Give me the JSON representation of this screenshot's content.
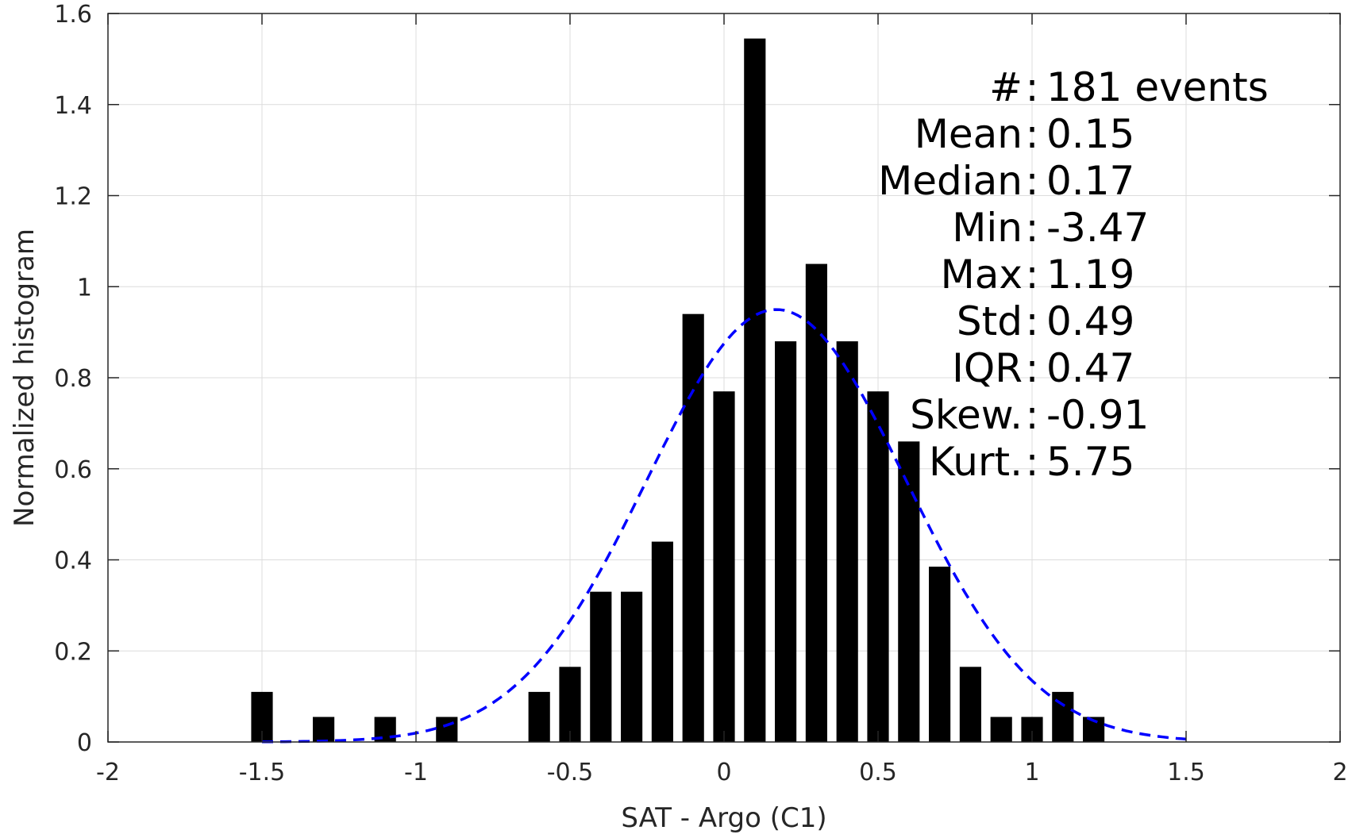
{
  "chart_data": {
    "type": "bar",
    "xlabel": "SAT - Argo (C1)",
    "ylabel": "Normalized histogram",
    "xlim": [
      -2,
      2
    ],
    "ylim": [
      0,
      1.6
    ],
    "xticks": [
      -2,
      -1.5,
      -1,
      -0.5,
      0,
      0.5,
      1,
      1.5,
      2
    ],
    "xtick_labels": [
      "-2",
      "-1.5",
      "-1",
      "-0.5",
      "0",
      "0.5",
      "1",
      "1.5",
      "2"
    ],
    "yticks": [
      0,
      0.2,
      0.4,
      0.6,
      0.8,
      1,
      1.2,
      1.4,
      1.6
    ],
    "ytick_labels": [
      "0",
      "0.2",
      "0.4",
      "0.6",
      "0.8",
      "1",
      "1.2",
      "1.4",
      "1.6"
    ],
    "grid": true,
    "bar_width": 0.07,
    "bar_color": "#000000",
    "bars": [
      {
        "x": -1.5,
        "y": 0.11
      },
      {
        "x": -1.3,
        "y": 0.055
      },
      {
        "x": -1.1,
        "y": 0.055
      },
      {
        "x": -0.9,
        "y": 0.055
      },
      {
        "x": -0.6,
        "y": 0.11
      },
      {
        "x": -0.5,
        "y": 0.165
      },
      {
        "x": -0.4,
        "y": 0.33
      },
      {
        "x": -0.3,
        "y": 0.33
      },
      {
        "x": -0.2,
        "y": 0.44
      },
      {
        "x": -0.1,
        "y": 0.94
      },
      {
        "x": 0.0,
        "y": 0.77
      },
      {
        "x": 0.1,
        "y": 1.545
      },
      {
        "x": 0.2,
        "y": 0.88
      },
      {
        "x": 0.3,
        "y": 1.05
      },
      {
        "x": 0.4,
        "y": 0.88
      },
      {
        "x": 0.5,
        "y": 0.77
      },
      {
        "x": 0.6,
        "y": 0.66
      },
      {
        "x": 0.7,
        "y": 0.385
      },
      {
        "x": 0.8,
        "y": 0.165
      },
      {
        "x": 0.9,
        "y": 0.055
      },
      {
        "x": 1.0,
        "y": 0.055
      },
      {
        "x": 1.1,
        "y": 0.11
      },
      {
        "x": 1.2,
        "y": 0.055
      }
    ],
    "fit_curve": {
      "kind": "gaussian",
      "mean": 0.17,
      "std": 0.42,
      "x_range": [
        -1.5,
        1.5
      ],
      "color": "#0000ff",
      "style": "dashed"
    },
    "stats": [
      {
        "label": "#  ",
        "sep": ":",
        "value": "181 events"
      },
      {
        "label": "Mean",
        "sep": ":",
        "value": "0.15"
      },
      {
        "label": "Median",
        "sep": ":",
        "value": "0.17"
      },
      {
        "label": "Min",
        "sep": ":",
        "value": "-3.47"
      },
      {
        "label": "Max",
        "sep": ":",
        "value": "1.19"
      },
      {
        "label": "Std",
        "sep": ":",
        "value": "0.49"
      },
      {
        "label": "IQR",
        "sep": ":",
        "value": "0.47"
      },
      {
        "label": "Skew.",
        "sep": ":",
        "value": "-0.91"
      },
      {
        "label": "Kurt.",
        "sep": ":",
        "value": "5.75"
      }
    ]
  }
}
